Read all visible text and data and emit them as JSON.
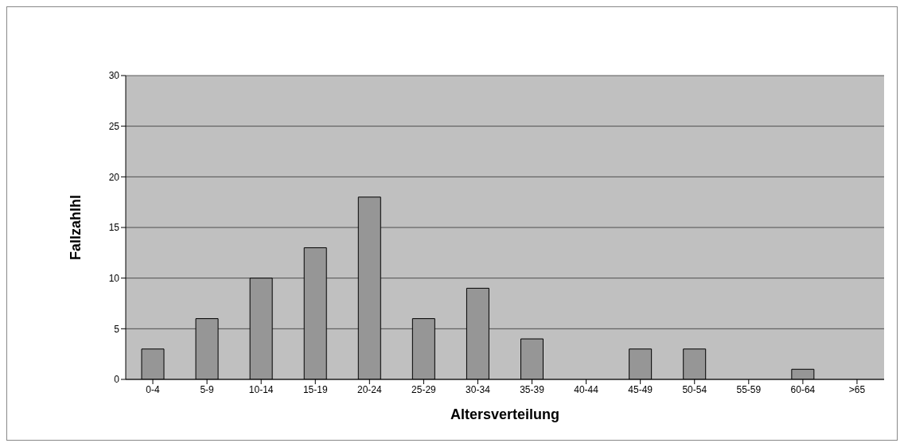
{
  "chart_data": {
    "type": "bar",
    "xlabel": "Altersverteilung",
    "ylabel": "Fallzahlhl",
    "categories": [
      "0-4",
      "5-9",
      "10-14",
      "15-19",
      "20-24",
      "25-29",
      "30-34",
      "35-39",
      "40-44",
      "45-49",
      "50-54",
      "55-59",
      "60-64",
      ">65"
    ],
    "values": [
      3,
      6,
      10,
      13,
      18,
      6,
      9,
      4,
      0,
      3,
      3,
      0,
      1,
      0
    ],
    "color": "#969696",
    "ylim": [
      0,
      30
    ],
    "yticks": [
      0,
      5,
      10,
      15,
      20,
      25,
      30
    ],
    "grid": "y"
  }
}
